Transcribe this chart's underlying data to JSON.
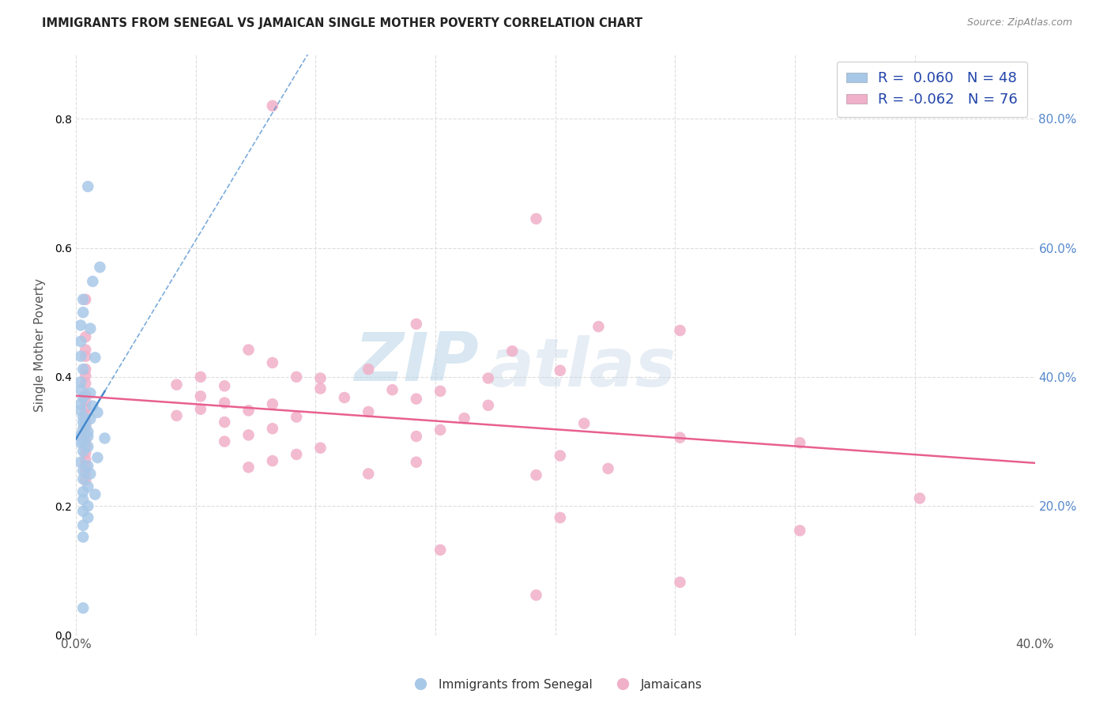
{
  "title": "IMMIGRANTS FROM SENEGAL VS JAMAICAN SINGLE MOTHER POVERTY CORRELATION CHART",
  "source": "Source: ZipAtlas.com",
  "ylabel": "Single Mother Poverty",
  "xlim": [
    0.0,
    0.4
  ],
  "ylim": [
    0.0,
    0.9
  ],
  "blue_color": "#a8c8e8",
  "pink_color": "#f0b0c8",
  "blue_line_color": "#4488cc",
  "pink_line_color": "#e86090",
  "blue_scatter": [
    [
      0.005,
      0.695
    ],
    [
      0.01,
      0.57
    ],
    [
      0.007,
      0.548
    ],
    [
      0.003,
      0.52
    ],
    [
      0.003,
      0.5
    ],
    [
      0.002,
      0.48
    ],
    [
      0.006,
      0.475
    ],
    [
      0.002,
      0.455
    ],
    [
      0.002,
      0.432
    ],
    [
      0.008,
      0.43
    ],
    [
      0.003,
      0.412
    ],
    [
      0.002,
      0.392
    ],
    [
      0.002,
      0.38
    ],
    [
      0.006,
      0.375
    ],
    [
      0.003,
      0.368
    ],
    [
      0.002,
      0.358
    ],
    [
      0.007,
      0.355
    ],
    [
      0.002,
      0.348
    ],
    [
      0.009,
      0.345
    ],
    [
      0.003,
      0.338
    ],
    [
      0.006,
      0.335
    ],
    [
      0.003,
      0.33
    ],
    [
      0.004,
      0.325
    ],
    [
      0.003,
      0.32
    ],
    [
      0.005,
      0.315
    ],
    [
      0.002,
      0.31
    ],
    [
      0.005,
      0.308
    ],
    [
      0.012,
      0.305
    ],
    [
      0.003,
      0.3
    ],
    [
      0.002,
      0.298
    ],
    [
      0.005,
      0.292
    ],
    [
      0.003,
      0.285
    ],
    [
      0.009,
      0.275
    ],
    [
      0.002,
      0.268
    ],
    [
      0.005,
      0.262
    ],
    [
      0.003,
      0.255
    ],
    [
      0.006,
      0.25
    ],
    [
      0.003,
      0.242
    ],
    [
      0.005,
      0.23
    ],
    [
      0.003,
      0.222
    ],
    [
      0.008,
      0.218
    ],
    [
      0.003,
      0.21
    ],
    [
      0.005,
      0.2
    ],
    [
      0.003,
      0.192
    ],
    [
      0.005,
      0.182
    ],
    [
      0.003,
      0.17
    ],
    [
      0.003,
      0.152
    ],
    [
      0.003,
      0.042
    ]
  ],
  "pink_scatter": [
    [
      0.082,
      0.82
    ],
    [
      0.192,
      0.645
    ],
    [
      0.004,
      0.52
    ],
    [
      0.142,
      0.482
    ],
    [
      0.218,
      0.478
    ],
    [
      0.252,
      0.472
    ],
    [
      0.004,
      0.462
    ],
    [
      0.004,
      0.442
    ],
    [
      0.072,
      0.442
    ],
    [
      0.182,
      0.44
    ],
    [
      0.004,
      0.432
    ],
    [
      0.082,
      0.422
    ],
    [
      0.004,
      0.412
    ],
    [
      0.122,
      0.412
    ],
    [
      0.202,
      0.41
    ],
    [
      0.004,
      0.402
    ],
    [
      0.052,
      0.4
    ],
    [
      0.092,
      0.4
    ],
    [
      0.102,
      0.398
    ],
    [
      0.172,
      0.398
    ],
    [
      0.004,
      0.39
    ],
    [
      0.042,
      0.388
    ],
    [
      0.062,
      0.386
    ],
    [
      0.102,
      0.382
    ],
    [
      0.132,
      0.38
    ],
    [
      0.152,
      0.378
    ],
    [
      0.004,
      0.372
    ],
    [
      0.052,
      0.37
    ],
    [
      0.112,
      0.368
    ],
    [
      0.142,
      0.366
    ],
    [
      0.004,
      0.362
    ],
    [
      0.062,
      0.36
    ],
    [
      0.082,
      0.358
    ],
    [
      0.172,
      0.356
    ],
    [
      0.004,
      0.352
    ],
    [
      0.052,
      0.35
    ],
    [
      0.072,
      0.348
    ],
    [
      0.122,
      0.346
    ],
    [
      0.004,
      0.342
    ],
    [
      0.042,
      0.34
    ],
    [
      0.092,
      0.338
    ],
    [
      0.162,
      0.336
    ],
    [
      0.004,
      0.332
    ],
    [
      0.062,
      0.33
    ],
    [
      0.212,
      0.328
    ],
    [
      0.004,
      0.322
    ],
    [
      0.082,
      0.32
    ],
    [
      0.152,
      0.318
    ],
    [
      0.004,
      0.312
    ],
    [
      0.072,
      0.31
    ],
    [
      0.142,
      0.308
    ],
    [
      0.252,
      0.306
    ],
    [
      0.004,
      0.302
    ],
    [
      0.062,
      0.3
    ],
    [
      0.302,
      0.298
    ],
    [
      0.004,
      0.292
    ],
    [
      0.102,
      0.29
    ],
    [
      0.004,
      0.282
    ],
    [
      0.092,
      0.28
    ],
    [
      0.202,
      0.278
    ],
    [
      0.004,
      0.272
    ],
    [
      0.082,
      0.27
    ],
    [
      0.142,
      0.268
    ],
    [
      0.004,
      0.262
    ],
    [
      0.072,
      0.26
    ],
    [
      0.222,
      0.258
    ],
    [
      0.004,
      0.252
    ],
    [
      0.122,
      0.25
    ],
    [
      0.192,
      0.248
    ],
    [
      0.004,
      0.24
    ],
    [
      0.352,
      0.212
    ],
    [
      0.202,
      0.182
    ],
    [
      0.302,
      0.162
    ],
    [
      0.152,
      0.132
    ],
    [
      0.252,
      0.082
    ],
    [
      0.192,
      0.062
    ]
  ],
  "watermark_zip": "ZIP",
  "watermark_atlas": "atlas",
  "background_color": "#ffffff",
  "grid_color": "#dddddd"
}
